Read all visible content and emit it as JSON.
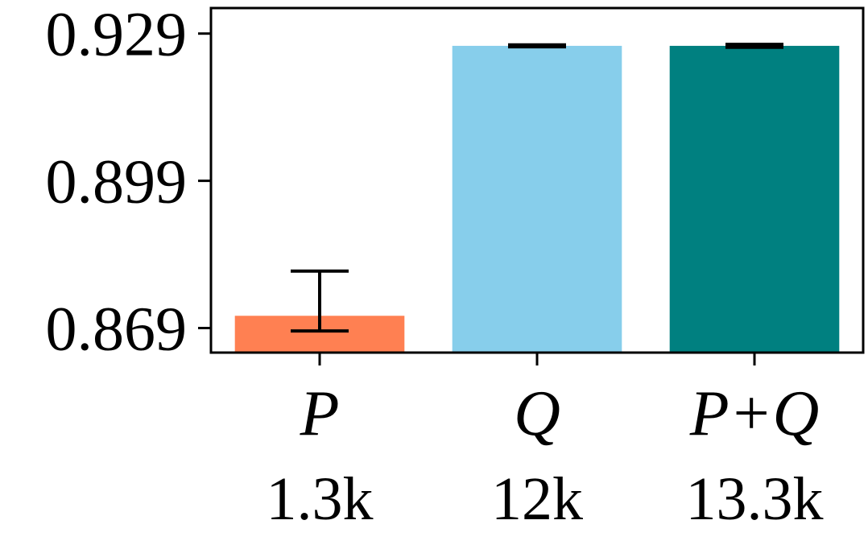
{
  "chart_data": {
    "type": "bar",
    "categories": [
      "P",
      "Q",
      "P+Q"
    ],
    "sublabels": [
      "1.3k",
      "12k",
      "13.3k"
    ],
    "values": [
      0.8715,
      0.9265,
      0.9265
    ],
    "error_lower": [
      0.8684,
      0.9263,
      0.9262
    ],
    "error_upper": [
      0.8806,
      0.9267,
      0.9268
    ],
    "colors": [
      "#FF8052",
      "#87CEEB",
      "#008080"
    ],
    "yticks": [
      0.869,
      0.899,
      0.929
    ],
    "ytick_labels": [
      "0.869",
      "0.899",
      "0.929"
    ],
    "ylim": [
      0.864,
      0.9342
    ],
    "title": "",
    "xlabel": "",
    "ylabel": "",
    "grid": false
  }
}
